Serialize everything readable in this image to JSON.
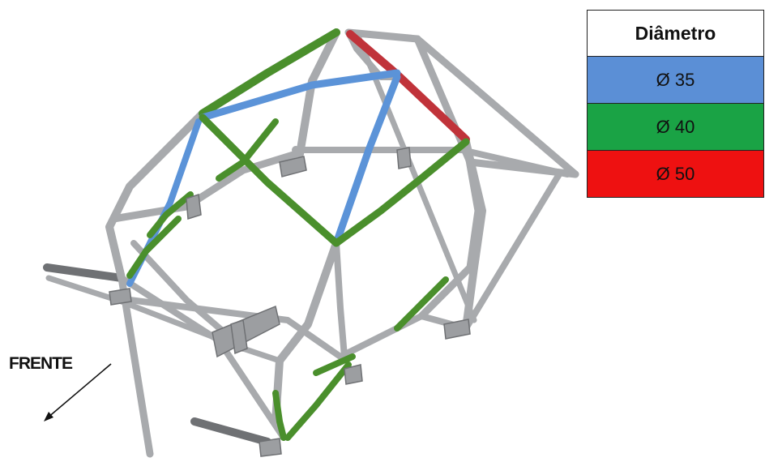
{
  "legend": {
    "header": "Diâmetro",
    "rows": [
      {
        "label": "Ø 35",
        "color": "#5b8fd6"
      },
      {
        "label": "Ø 40",
        "color": "#1aa345"
      },
      {
        "label": "Ø 50",
        "color": "#ee1111"
      }
    ]
  },
  "direction": {
    "label": "FRENTE"
  },
  "tube_colors": {
    "gray": "#a8aaad",
    "gray_dark": "#6f7174",
    "blue": "#5b93d8",
    "green": "#4a8f2c",
    "red": "#c0333a"
  }
}
